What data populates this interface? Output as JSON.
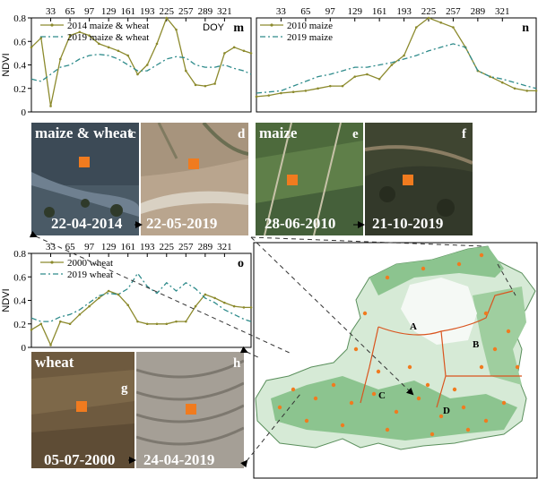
{
  "doy_ticks": [
    "33",
    "65",
    "97",
    "129",
    "161",
    "193",
    "225",
    "257",
    "289",
    "321"
  ],
  "ndvi_label": "NDVI",
  "chart_data": [
    {
      "type": "line",
      "panel": "m",
      "xlabel": "DOY",
      "ylabel": "NDVI",
      "ylim": [
        0,
        0.8
      ],
      "y_ticks": [
        "0.8",
        "0.6",
        "0.4",
        "0.2",
        "0"
      ],
      "legend_position": "top-left",
      "series": [
        {
          "name": "2014 maize & wheat",
          "color": "#8c8a2d",
          "style": "solid-marker",
          "x": [
            1,
            17,
            33,
            49,
            65,
            81,
            97,
            113,
            129,
            145,
            161,
            177,
            193,
            209,
            225,
            241,
            257,
            273,
            289,
            305,
            321,
            337,
            353,
            365
          ],
          "values": [
            0.55,
            0.63,
            0.05,
            0.45,
            0.65,
            0.68,
            0.65,
            0.58,
            0.55,
            0.52,
            0.48,
            0.32,
            0.4,
            0.58,
            0.8,
            0.7,
            0.35,
            0.23,
            0.22,
            0.24,
            0.5,
            0.55,
            0.52,
            0.5
          ]
        },
        {
          "name": "2019 maize & wheat",
          "color": "#2e8b8b",
          "style": "dash-dot",
          "x": [
            1,
            17,
            33,
            49,
            65,
            81,
            97,
            113,
            129,
            145,
            161,
            177,
            193,
            209,
            225,
            241,
            257,
            273,
            289,
            305,
            321,
            337,
            353,
            365
          ],
          "values": [
            0.28,
            0.26,
            0.32,
            0.38,
            0.4,
            0.45,
            0.48,
            0.49,
            0.48,
            0.45,
            0.4,
            0.35,
            0.35,
            0.4,
            0.45,
            0.47,
            0.46,
            0.4,
            0.38,
            0.38,
            0.4,
            0.37,
            0.35,
            0.32
          ]
        }
      ]
    },
    {
      "type": "line",
      "panel": "n",
      "ylim": [
        0,
        0.8
      ],
      "legend_position": "top-left",
      "series": [
        {
          "name": "2010 maize",
          "color": "#8c8a2d",
          "style": "solid-marker",
          "x": [
            1,
            17,
            33,
            49,
            65,
            81,
            97,
            113,
            129,
            145,
            161,
            177,
            193,
            209,
            225,
            241,
            257,
            273,
            289,
            305,
            321,
            337,
            353,
            365
          ],
          "values": [
            0.13,
            0.14,
            0.16,
            0.17,
            0.18,
            0.2,
            0.22,
            0.22,
            0.3,
            0.32,
            0.28,
            0.4,
            0.48,
            0.72,
            0.8,
            0.76,
            0.72,
            0.55,
            0.35,
            0.3,
            0.25,
            0.2,
            0.18,
            0.18
          ]
        },
        {
          "name": "2019 maize",
          "color": "#2e8b8b",
          "style": "dash-dot",
          "x": [
            1,
            17,
            33,
            49,
            65,
            81,
            97,
            113,
            129,
            145,
            161,
            177,
            193,
            209,
            225,
            241,
            257,
            273,
            289,
            305,
            321,
            337,
            353,
            365
          ],
          "values": [
            0.16,
            0.17,
            0.18,
            0.22,
            0.26,
            0.3,
            0.32,
            0.35,
            0.38,
            0.38,
            0.4,
            0.42,
            0.45,
            0.48,
            0.52,
            0.55,
            0.58,
            0.55,
            0.35,
            0.3,
            0.28,
            0.25,
            0.22,
            0.2
          ]
        }
      ]
    },
    {
      "type": "line",
      "panel": "o",
      "ylabel": "NDVI",
      "ylim": [
        0,
        0.8
      ],
      "y_ticks": [
        "0.8",
        "0.6",
        "0.4",
        "0.2",
        "0"
      ],
      "legend_position": "top-left",
      "series": [
        {
          "name": "2000 wheat",
          "color": "#8c8a2d",
          "style": "solid-marker",
          "x": [
            1,
            17,
            33,
            49,
            65,
            81,
            97,
            113,
            129,
            145,
            161,
            177,
            193,
            209,
            225,
            241,
            257,
            273,
            289,
            305,
            321,
            337,
            353,
            365
          ],
          "values": [
            0.15,
            0.2,
            0.02,
            0.22,
            0.2,
            0.28,
            0.35,
            0.42,
            0.48,
            0.45,
            0.36,
            0.22,
            0.2,
            0.2,
            0.2,
            0.22,
            0.22,
            0.35,
            0.45,
            0.42,
            0.38,
            0.35,
            0.34,
            0.34
          ]
        },
        {
          "name": "2019 wheat",
          "color": "#2e8b8b",
          "style": "dash-dot",
          "x": [
            1,
            17,
            33,
            49,
            65,
            81,
            97,
            113,
            129,
            145,
            161,
            177,
            193,
            209,
            225,
            241,
            257,
            273,
            289,
            305,
            321,
            337,
            353,
            365
          ],
          "values": [
            0.25,
            0.22,
            0.22,
            0.26,
            0.28,
            0.32,
            0.38,
            0.44,
            0.46,
            0.45,
            0.5,
            0.63,
            0.52,
            0.46,
            0.55,
            0.48,
            0.55,
            0.5,
            0.42,
            0.38,
            0.32,
            0.28,
            0.24,
            0.22
          ]
        }
      ]
    }
  ],
  "panel_letters": {
    "m": "m",
    "n": "n",
    "o": "o",
    "c": "c",
    "d": "d",
    "e": "e",
    "f": "f",
    "g": "g",
    "h": "h"
  },
  "photos": {
    "c": {
      "title": "maize & wheat",
      "date": "22-04-2014"
    },
    "d": {
      "date": "22-05-2019"
    },
    "e": {
      "title": "maize",
      "date": "28-06-2010"
    },
    "f": {
      "date": "21-10-2019"
    },
    "g": {
      "title": "wheat",
      "date": "05-07-2000"
    },
    "h": {
      "date": "24-04-2019"
    }
  },
  "map": {
    "labels": [
      "A",
      "B",
      "C",
      "D"
    ]
  },
  "colors": {
    "marker": "#f07b1f",
    "boundary": "#d9541e",
    "land": "#74b87a"
  }
}
